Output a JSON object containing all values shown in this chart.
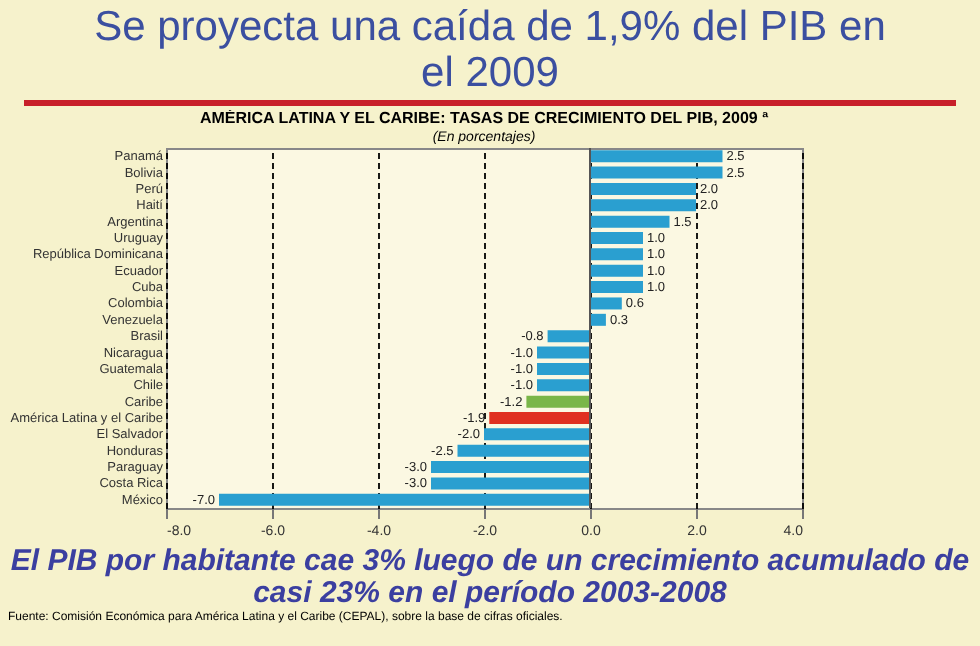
{
  "chart_data": {
    "type": "bar",
    "orientation": "horizontal",
    "title": "Se proyecta una caída de 1,9% del PIB en el 2009",
    "subtitle": "AMÉRICA LATINA Y EL CARIBE: TASAS DE CRECIMIENTO DEL PIB, 2009 ª\n(En porcentajes)",
    "categories": [
      "Panamá",
      "Bolivia",
      "Perú",
      "Haití",
      "Argentina",
      "Uruguay",
      "República Dominicana",
      "Ecuador",
      "Cuba",
      "Colombia",
      "Venezuela",
      "Brasil",
      "Nicaragua",
      "Guatemala",
      "Chile",
      "Caribe",
      "América Latina y el Caribe",
      "El Salvador",
      "Honduras",
      "Paraguay",
      "Costa Rica",
      "México"
    ],
    "values": [
      2.5,
      2.5,
      2.0,
      2.0,
      1.5,
      1.0,
      1.0,
      1.0,
      1.0,
      0.6,
      0.3,
      -0.8,
      -1.0,
      -1.0,
      -1.0,
      -1.2,
      -1.9,
      -2.0,
      -2.5,
      -3.0,
      -3.0,
      -7.0
    ],
    "value_labels": [
      "2.5",
      "2.5",
      "2.0",
      "2.0",
      "1.5",
      "1.0",
      "1.0",
      "1.0",
      "1.0",
      "0.6",
      "0.3",
      "-0.8",
      "-1.0",
      "-1.0",
      "-1.0",
      "-1.2",
      "-1.9",
      "-2.0",
      "-2.5",
      "-3.0",
      "-3.0",
      "-7.0"
    ],
    "colors": [
      "#2a9fd0",
      "#2a9fd0",
      "#2a9fd0",
      "#2a9fd0",
      "#2a9fd0",
      "#2a9fd0",
      "#2a9fd0",
      "#2a9fd0",
      "#2a9fd0",
      "#2a9fd0",
      "#2a9fd0",
      "#2a9fd0",
      "#2a9fd0",
      "#2a9fd0",
      "#2a9fd0",
      "#7ab648",
      "#e03020",
      "#2a9fd0",
      "#2a9fd0",
      "#2a9fd0",
      "#2a9fd0",
      "#2a9fd0"
    ],
    "xlim": [
      -8,
      4
    ],
    "xticks": [
      {
        "value": -8,
        "label": "-8.0"
      },
      {
        "value": -6,
        "label": "-6.0"
      },
      {
        "value": -4,
        "label": "-4.0"
      },
      {
        "value": -2,
        "label": "-2.0"
      },
      {
        "value": 0,
        "label": "0.0"
      },
      {
        "value": 2,
        "label": "2.0"
      },
      {
        "value": 4,
        "label": "4.0"
      }
    ],
    "grid": "x",
    "annotations": [
      "El PIB por habitante cae 3% luego de un crecimiento acumulado de casi 23% en el período 2003-2008",
      "Fuente: Comisión Económica para América Latina y el Caribe (CEPAL), sobre la base de cifras oficiales."
    ]
  }
}
